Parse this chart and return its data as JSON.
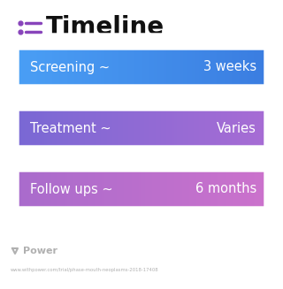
{
  "title": "Timeline",
  "background_color": "#ffffff",
  "title_color": "#111111",
  "title_fontsize": 20,
  "icon_color": "#8844bb",
  "rows": [
    {
      "label": "Screening ~",
      "value": "3 weeks",
      "color_left": "#4a9ff5",
      "color_right": "#3a7ce0"
    },
    {
      "label": "Treatment ~",
      "value": "Varies",
      "color_left": "#7868d4",
      "color_right": "#a86cd4"
    },
    {
      "label": "Follow ups ~",
      "value": "6 months",
      "color_left": "#a86bcc",
      "color_right": "#cc72cc"
    }
  ],
  "row_text_color": "#ffffff",
  "row_fontsize": 10.5,
  "watermark_text": "Power",
  "watermark_color": "#b0b0b0",
  "url_text": "www.withpower.com/trial/phase-mouth-neoplasms-2018-17408",
  "url_color": "#b0b0b0"
}
